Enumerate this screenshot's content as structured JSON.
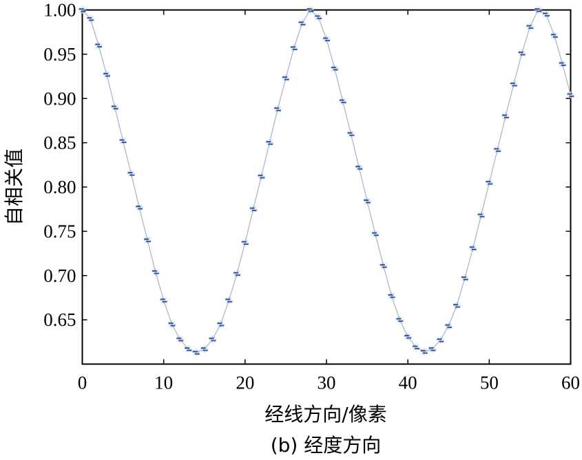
{
  "chart_data": {
    "type": "line",
    "xlabel": "经线方向/像素",
    "ylabel": "自相关值",
    "caption": "(b) 经度方向",
    "xlim": [
      0,
      60
    ],
    "ylim": [
      0.6,
      1.0
    ],
    "xticks": [
      0,
      10,
      20,
      30,
      40,
      50,
      60
    ],
    "yticks": [
      0.65,
      0.7,
      0.75,
      0.8,
      0.85,
      0.9,
      0.95,
      1.0
    ],
    "ytick_labels": [
      "0.65",
      "0.70",
      "0.75",
      "0.80",
      "0.85",
      "0.90",
      "0.95",
      "1.00"
    ],
    "grid": false,
    "line_color": "#aab8cc",
    "marker_color": "#2a4f9a",
    "series": [
      {
        "x": [
          0,
          1,
          2,
          3,
          4,
          5,
          6,
          7,
          8,
          9,
          10,
          11,
          12,
          13,
          14,
          15,
          16,
          17,
          18,
          19,
          20,
          21,
          22,
          23,
          24,
          25,
          26,
          27,
          28,
          29,
          30,
          31,
          32,
          33,
          34,
          35,
          36,
          37,
          38,
          39,
          40,
          41,
          42,
          43,
          44,
          45,
          46,
          47,
          48,
          49,
          50,
          51,
          52,
          53,
          54,
          55,
          56,
          57,
          58,
          59,
          60
        ],
        "values": [
          1.0,
          0.99,
          0.96,
          0.927,
          0.89,
          0.852,
          0.815,
          0.777,
          0.74,
          0.704,
          0.672,
          0.645,
          0.628,
          0.617,
          0.613,
          0.617,
          0.628,
          0.645,
          0.672,
          0.702,
          0.737,
          0.775,
          0.812,
          0.85,
          0.888,
          0.923,
          0.957,
          0.985,
          1.0,
          0.992,
          0.967,
          0.934,
          0.897,
          0.86,
          0.822,
          0.784,
          0.747,
          0.711,
          0.677,
          0.65,
          0.631,
          0.619,
          0.614,
          0.617,
          0.627,
          0.643,
          0.666,
          0.697,
          0.731,
          0.768,
          0.805,
          0.842,
          0.88,
          0.916,
          0.951,
          0.981,
          1.0,
          0.995,
          0.971,
          0.939,
          0.904
        ]
      }
    ]
  }
}
